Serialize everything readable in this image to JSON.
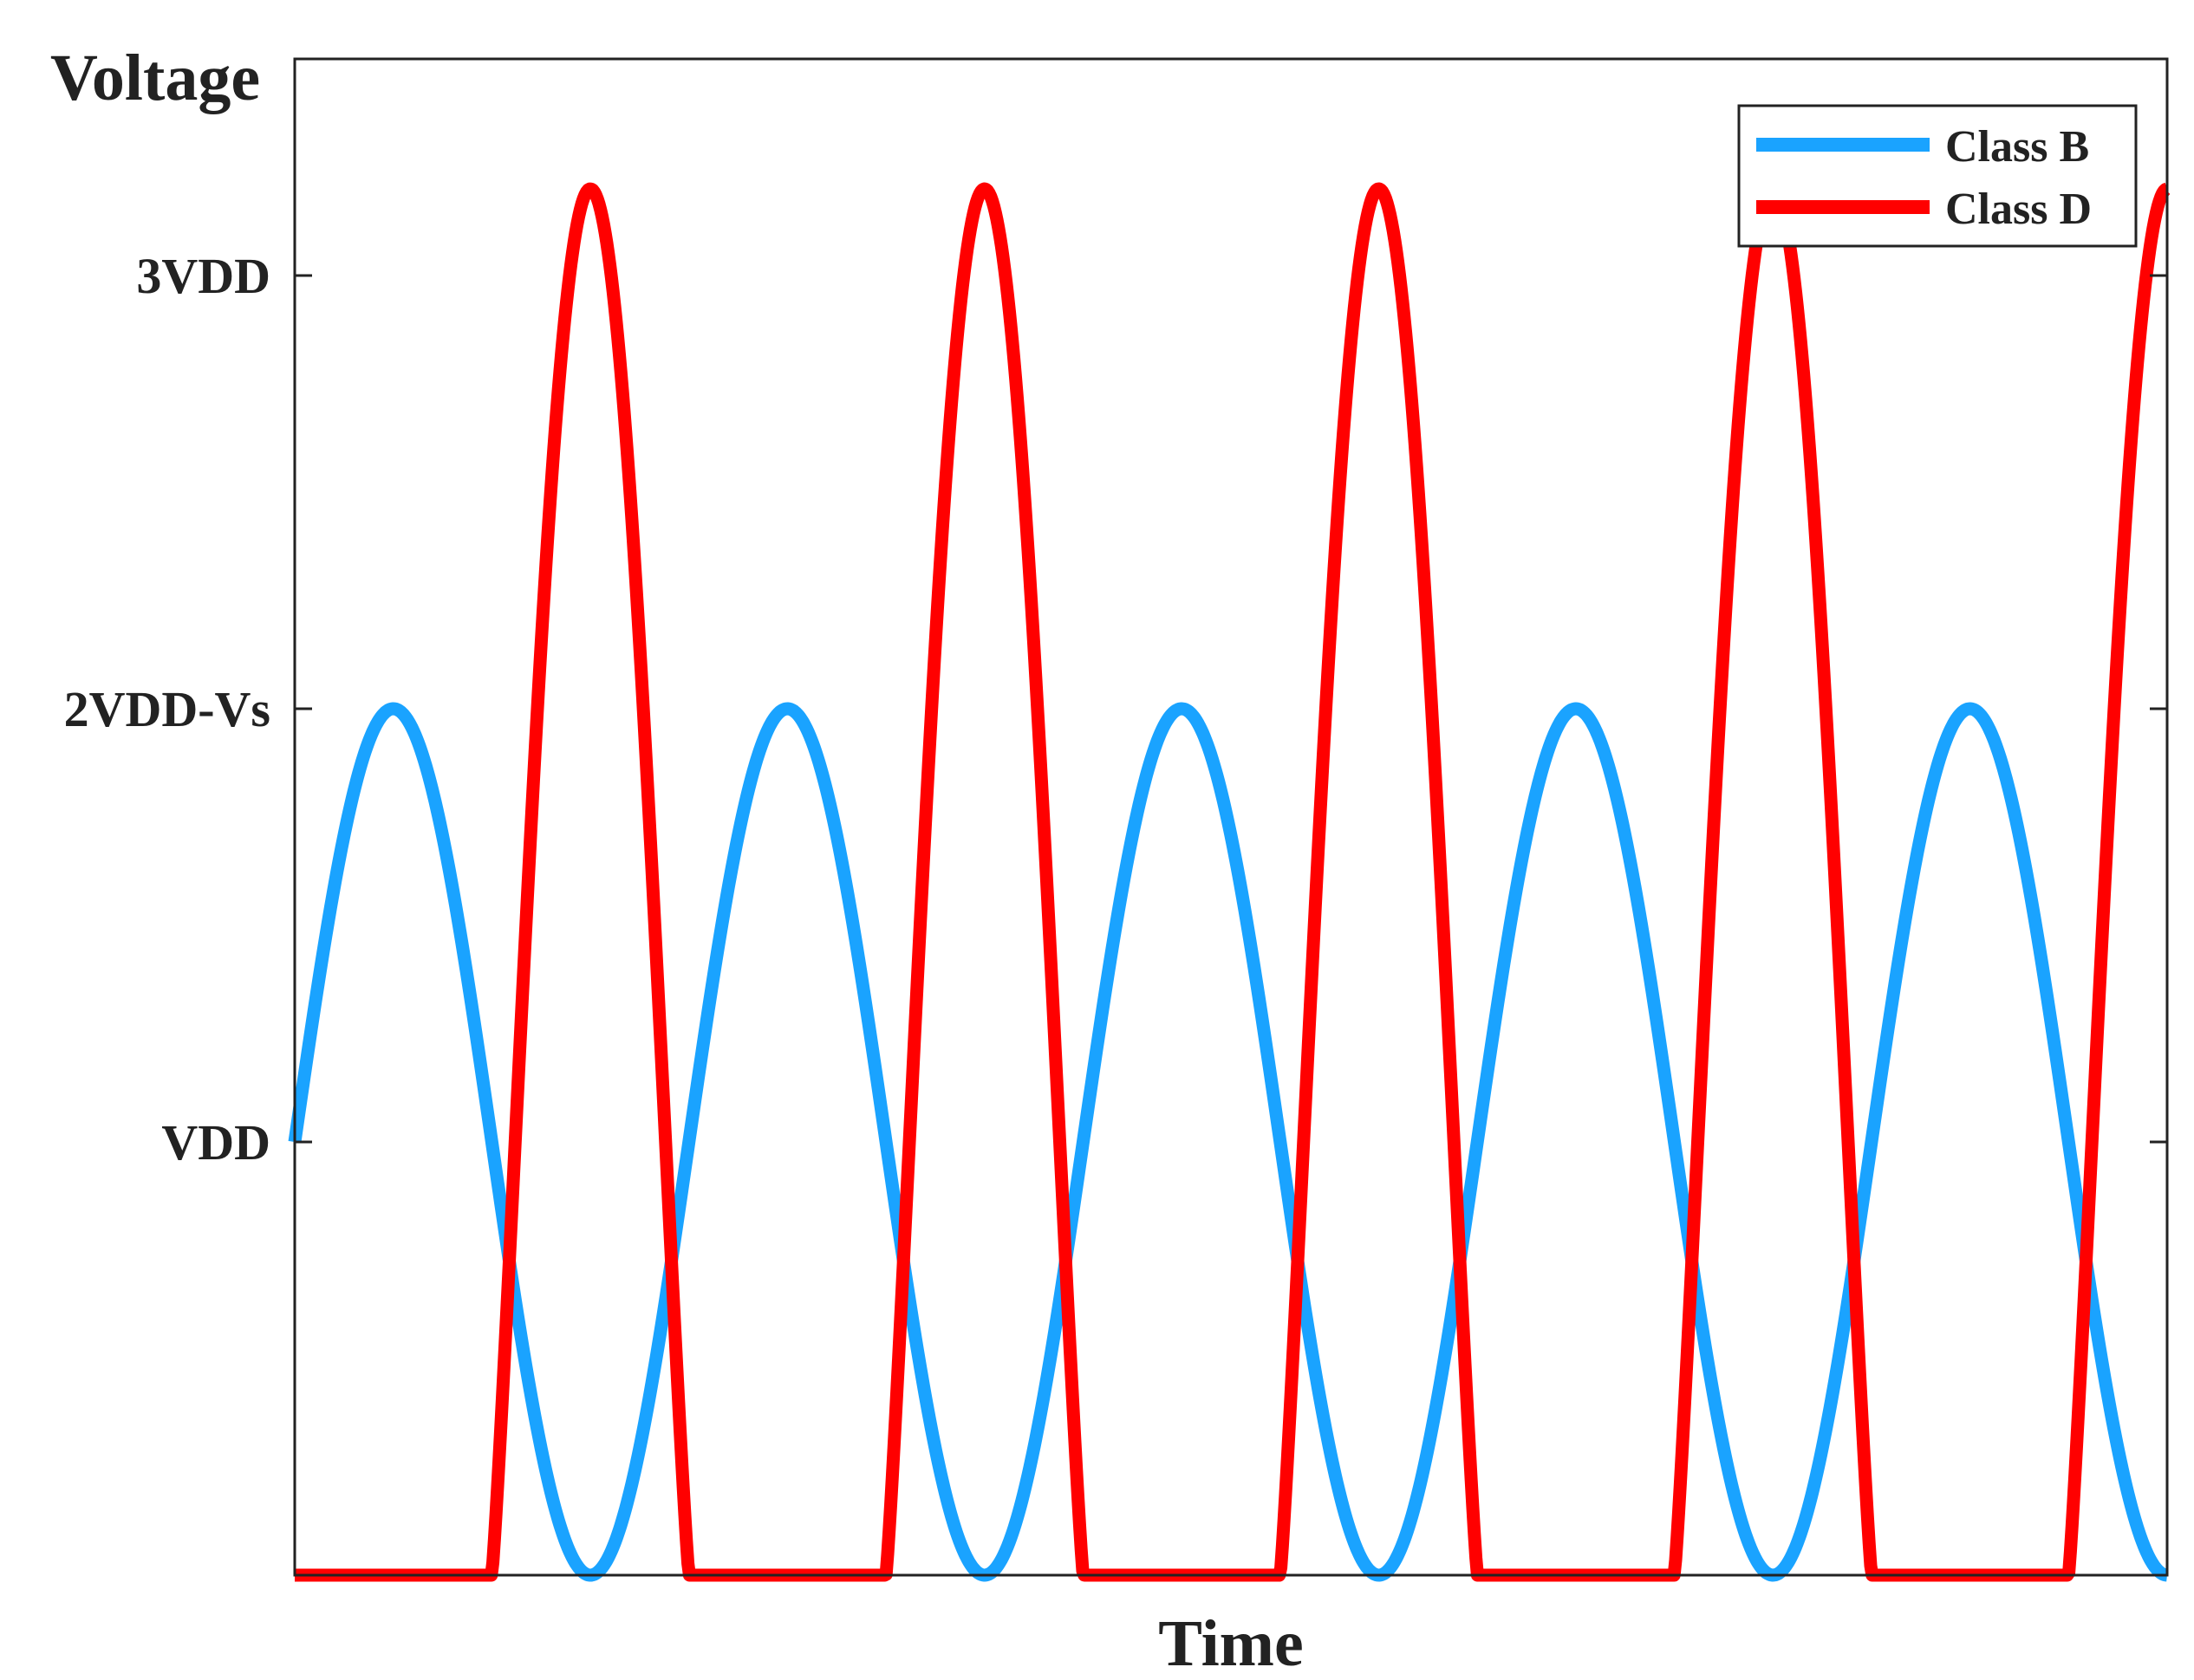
{
  "chart_data": {
    "type": "line",
    "title": "",
    "xlabel": "Time",
    "ylabel": "Voltage",
    "xlim": [
      0,
      5
    ],
    "ylim": [
      0,
      3.5
    ],
    "yticks": [
      {
        "value": 1,
        "label": "VDD"
      },
      {
        "value": 2,
        "label": "2VDD-Vs"
      },
      {
        "value": 3,
        "label": "3VDD"
      }
    ],
    "grid": false,
    "legend_position": "top-right",
    "periods": 4.75,
    "series": [
      {
        "name": "Class B",
        "color": "#1aa3ff",
        "waveform": "sine",
        "offset": 0,
        "amplitude": 1,
        "min": 0,
        "max": 2
      },
      {
        "name": "Class D",
        "color": "#ff0000",
        "waveform": "half-wave pulse",
        "floor": 0,
        "peak": 3.2
      }
    ]
  }
}
